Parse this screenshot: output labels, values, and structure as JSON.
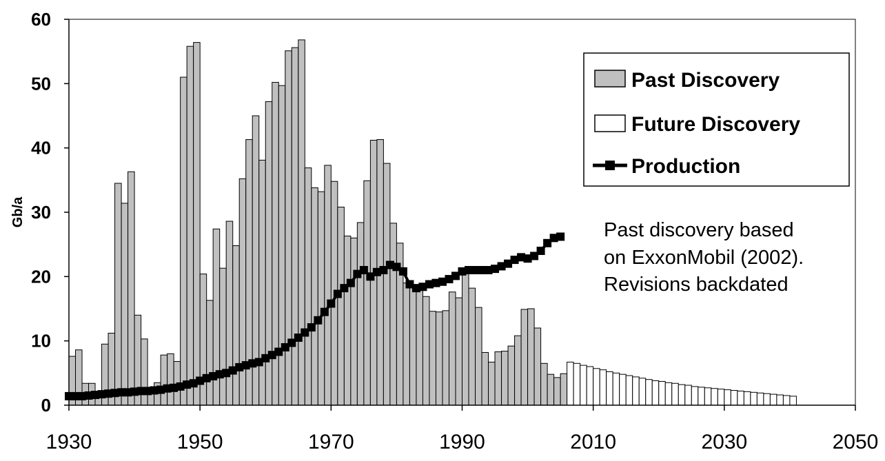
{
  "chart_data": {
    "type": "bar",
    "ylabel": "Gb/a",
    "xlabel": "",
    "ylim": [
      0,
      60
    ],
    "xlim": [
      1930,
      2050
    ],
    "y_ticks": [
      0,
      10,
      20,
      30,
      40,
      50,
      60
    ],
    "x_ticks": [
      1930,
      1950,
      1970,
      1990,
      2010,
      2030,
      2050
    ],
    "grid": false,
    "legend_position": "top-right",
    "legend": [
      {
        "label": "Past Discovery",
        "marker": "gray-box"
      },
      {
        "label": "Future Discovery",
        "marker": "white-box"
      },
      {
        "label": "Production",
        "marker": "black-square-line"
      }
    ],
    "annotation": [
      "Past discovery based",
      "on ExxonMobil (2002).",
      "Revisions backdated"
    ],
    "series": [
      {
        "name": "Past Discovery",
        "kind": "bar",
        "color": "#c0c0c0",
        "x": [
          1930,
          1931,
          1932,
          1933,
          1934,
          1935,
          1936,
          1937,
          1938,
          1939,
          1940,
          1941,
          1942,
          1943,
          1944,
          1945,
          1946,
          1947,
          1948,
          1949,
          1950,
          1951,
          1952,
          1953,
          1954,
          1955,
          1956,
          1957,
          1958,
          1959,
          1960,
          1961,
          1962,
          1963,
          1964,
          1965,
          1966,
          1967,
          1968,
          1969,
          1970,
          1971,
          1972,
          1973,
          1974,
          1975,
          1976,
          1977,
          1978,
          1979,
          1980,
          1981,
          1982,
          1983,
          1984,
          1985,
          1986,
          1987,
          1988,
          1989,
          1990,
          1991,
          1992,
          1993,
          1994,
          1995,
          1996,
          1997,
          1998,
          1999,
          2000,
          2001,
          2002,
          2003,
          2004,
          2005
        ],
        "values": [
          7.6,
          8.6,
          3.4,
          3.4,
          1.8,
          9.5,
          11.2,
          34.5,
          31.4,
          36.3,
          14.0,
          10.3,
          2.8,
          3.5,
          7.8,
          8.0,
          6.8,
          51.0,
          55.8,
          56.4,
          20.4,
          16.3,
          27.4,
          21.3,
          28.6,
          24.8,
          35.2,
          41.3,
          45.0,
          38.1,
          47.2,
          50.2,
          49.7,
          55.1,
          55.6,
          56.8,
          36.9,
          33.8,
          33.2,
          37.3,
          34.8,
          30.8,
          26.3,
          26.0,
          28.4,
          34.9,
          41.2,
          41.3,
          37.6,
          28.3,
          25.2,
          19.0,
          18.3,
          18.1,
          16.9,
          14.6,
          14.5,
          14.7,
          17.6,
          16.7,
          21.0,
          18.2,
          15.2,
          8.2,
          6.7,
          8.3,
          8.4,
          9.2,
          10.8,
          14.9,
          15.0,
          12.0,
          6.5,
          4.8,
          4.3,
          4.9
        ]
      },
      {
        "name": "Future Discovery",
        "kind": "bar",
        "color": "#ffffff",
        "x": [
          2006,
          2007,
          2008,
          2009,
          2010,
          2011,
          2012,
          2013,
          2014,
          2015,
          2016,
          2017,
          2018,
          2019,
          2020,
          2021,
          2022,
          2023,
          2024,
          2025,
          2026,
          2027,
          2028,
          2029,
          2030,
          2031,
          2032,
          2033,
          2034,
          2035,
          2036,
          2037,
          2038,
          2039,
          2040
        ],
        "values": [
          6.7,
          6.5,
          6.2,
          6.0,
          5.7,
          5.5,
          5.2,
          5.0,
          4.8,
          4.6,
          4.4,
          4.2,
          4.0,
          3.8,
          3.7,
          3.5,
          3.4,
          3.2,
          3.1,
          2.9,
          2.8,
          2.7,
          2.6,
          2.5,
          2.4,
          2.3,
          2.2,
          2.1,
          2.0,
          1.9,
          1.8,
          1.7,
          1.6,
          1.5,
          1.4
        ]
      },
      {
        "name": "Production",
        "kind": "line",
        "color": "#000000",
        "x": [
          1930,
          1931,
          1932,
          1933,
          1934,
          1935,
          1936,
          1937,
          1938,
          1939,
          1940,
          1941,
          1942,
          1943,
          1944,
          1945,
          1946,
          1947,
          1948,
          1949,
          1950,
          1951,
          1952,
          1953,
          1954,
          1955,
          1956,
          1957,
          1958,
          1959,
          1960,
          1961,
          1962,
          1963,
          1964,
          1965,
          1966,
          1967,
          1968,
          1969,
          1970,
          1971,
          1972,
          1973,
          1974,
          1975,
          1976,
          1977,
          1978,
          1979,
          1980,
          1981,
          1982,
          1983,
          1984,
          1985,
          1986,
          1987,
          1988,
          1989,
          1990,
          1991,
          1992,
          1993,
          1994,
          1995,
          1996,
          1997,
          1998,
          1999,
          2000,
          2001,
          2002,
          2003,
          2004,
          2005
        ],
        "values": [
          1.4,
          1.4,
          1.4,
          1.5,
          1.6,
          1.7,
          1.8,
          1.9,
          2.0,
          2.0,
          2.1,
          2.2,
          2.2,
          2.3,
          2.4,
          2.6,
          2.7,
          2.9,
          3.2,
          3.4,
          3.8,
          4.2,
          4.5,
          4.8,
          5.0,
          5.4,
          5.9,
          6.2,
          6.5,
          6.7,
          7.3,
          7.8,
          8.3,
          9.0,
          9.7,
          10.5,
          11.3,
          12.1,
          13.2,
          14.5,
          15.8,
          17.3,
          18.2,
          19.0,
          20.4,
          21.0,
          20.0,
          20.7,
          21.0,
          21.8,
          21.5,
          20.8,
          18.8,
          18.2,
          18.4,
          18.8,
          19.0,
          19.2,
          19.6,
          20.1,
          20.8,
          21.0,
          21.0,
          21.0,
          21.0,
          21.2,
          21.6,
          22.0,
          22.6,
          23.0,
          22.8,
          23.2,
          24.0,
          25.2,
          26.0,
          26.2
        ]
      }
    ]
  }
}
